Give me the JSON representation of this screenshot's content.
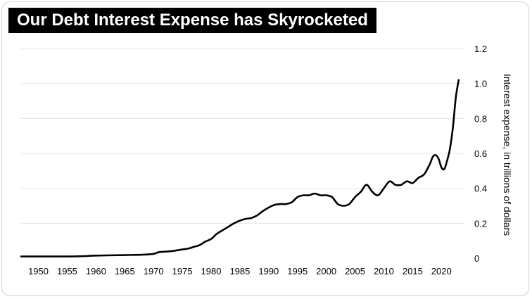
{
  "chart_data": {
    "type": "line",
    "title": "Our Debt Interest Expense has Skyrocketed",
    "xlabel": "",
    "ylabel": "Interest expense, in trillions of dollars",
    "xlim": [
      1947,
      2024
    ],
    "ylim": [
      0,
      1.2
    ],
    "x_ticks": [
      1950,
      1955,
      1960,
      1965,
      1970,
      1975,
      1980,
      1985,
      1990,
      1995,
      2000,
      2005,
      2010,
      2015,
      2020
    ],
    "y_ticks": [
      {
        "value": 0,
        "label": "0"
      },
      {
        "value": 0.2,
        "label": "0.2"
      },
      {
        "value": 0.4,
        "label": "0.4"
      },
      {
        "value": 0.6,
        "label": "0.6"
      },
      {
        "value": 0.8,
        "label": "0.8"
      },
      {
        "value": 1.0,
        "label": "1.0"
      },
      {
        "value": 1.2,
        "label": "1.2"
      }
    ],
    "grid": "horizontal",
    "y_axis_side": "right",
    "series": [
      {
        "name": "Interest expense",
        "color": "#000000",
        "x": [
          1947,
          1950,
          1955,
          1958,
          1960,
          1965,
          1968,
          1970,
          1971,
          1973,
          1975,
          1976,
          1977,
          1978,
          1979,
          1980,
          1981,
          1982,
          1983,
          1984,
          1985,
          1986,
          1987,
          1988,
          1989,
          1990,
          1991,
          1992,
          1993,
          1994,
          1995,
          1996,
          1997,
          1998,
          1999,
          2000,
          2001,
          2002,
          2003,
          2004,
          2005,
          2006,
          2007,
          2008,
          2009,
          2010,
          2011,
          2012,
          2013,
          2014,
          2015,
          2016,
          2017,
          2018,
          2018.5,
          2019,
          2019.5,
          2020,
          2020.5,
          2021,
          2021.5,
          2022,
          2022.5,
          2023
        ],
        "values": [
          0.01,
          0.01,
          0.01,
          0.012,
          0.015,
          0.018,
          0.02,
          0.025,
          0.035,
          0.04,
          0.05,
          0.055,
          0.065,
          0.075,
          0.095,
          0.11,
          0.14,
          0.16,
          0.18,
          0.2,
          0.215,
          0.225,
          0.23,
          0.245,
          0.27,
          0.29,
          0.305,
          0.31,
          0.31,
          0.32,
          0.35,
          0.36,
          0.36,
          0.37,
          0.36,
          0.36,
          0.35,
          0.31,
          0.3,
          0.31,
          0.35,
          0.38,
          0.42,
          0.38,
          0.36,
          0.4,
          0.44,
          0.42,
          0.42,
          0.44,
          0.43,
          0.46,
          0.48,
          0.54,
          0.58,
          0.59,
          0.57,
          0.52,
          0.51,
          0.56,
          0.63,
          0.75,
          0.92,
          1.02
        ]
      }
    ]
  },
  "colors": {
    "line": "#000000",
    "grid": "#e4e4e4",
    "banner_bg": "#000000",
    "banner_text": "#ffffff"
  }
}
